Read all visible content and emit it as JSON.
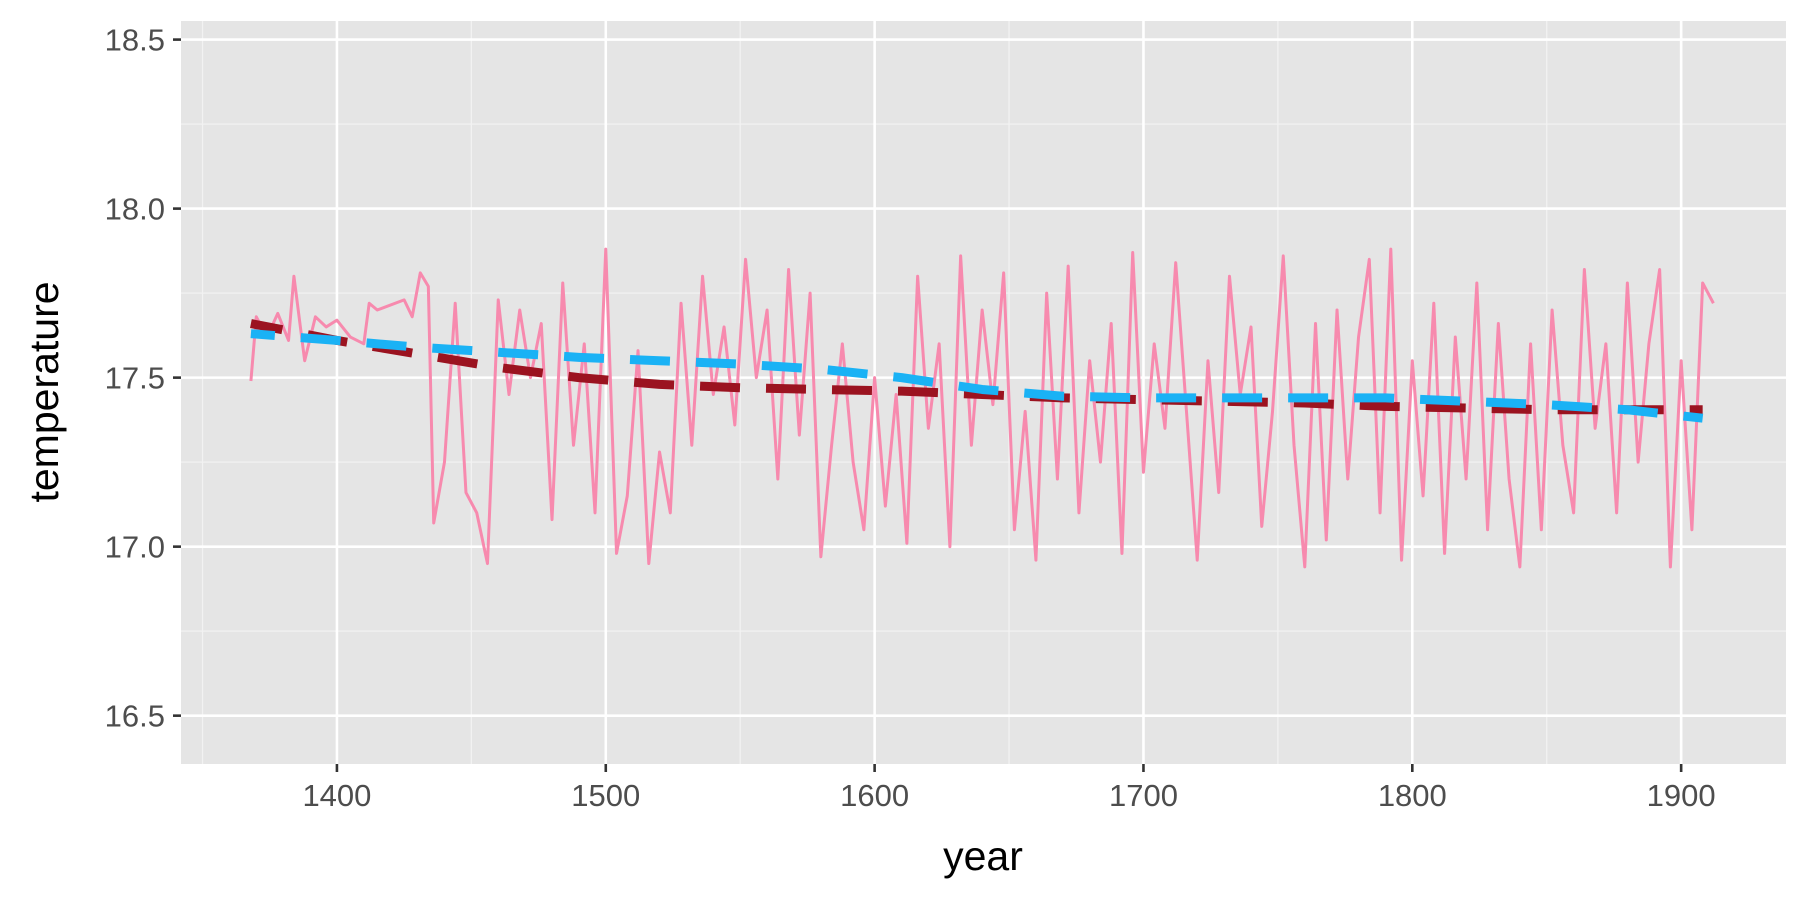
{
  "chart_data": {
    "type": "line",
    "x_label": "year",
    "y_label": "temperature",
    "xlim": [
      1342,
      1939
    ],
    "ylim": [
      16.357,
      18.555
    ],
    "xticks": [
      1400,
      1500,
      1600,
      1700,
      1800,
      1900
    ],
    "yticks": [
      {
        "value": 16.5,
        "label": "16.5"
      },
      {
        "value": 17,
        "label": "17.0"
      },
      {
        "value": 17.5,
        "label": "17.5"
      },
      {
        "value": 18,
        "label": "18.0"
      },
      {
        "value": 18.5,
        "label": "18.5"
      }
    ],
    "xminor": [
      1350,
      1450,
      1550,
      1650,
      1750,
      1850
    ],
    "yminor": [
      16.75,
      17.25,
      17.75,
      18.25
    ],
    "grid": true,
    "series": [
      {
        "color": "#f78aae",
        "dash": false,
        "x": [
          1368,
          1370,
          1374,
          1378,
          1382,
          1384,
          1388,
          1392,
          1396,
          1400,
          1405,
          1410,
          1412,
          1415,
          1425,
          1428,
          1431,
          1434,
          1436,
          1440,
          1444,
          1448,
          1452,
          1456,
          1460,
          1464,
          1468,
          1472,
          1476,
          1480,
          1484,
          1488,
          1492,
          1496,
          1500,
          1504,
          1508,
          1512,
          1516,
          1520,
          1524,
          1528,
          1532,
          1536,
          1540,
          1544,
          1548,
          1552,
          1556,
          1560,
          1564,
          1568,
          1572,
          1576,
          1580,
          1584,
          1588,
          1592,
          1596,
          1600,
          1604,
          1608,
          1612,
          1616,
          1620,
          1624,
          1628,
          1632,
          1636,
          1640,
          1644,
          1648,
          1652,
          1656,
          1660,
          1664,
          1668,
          1672,
          1676,
          1680,
          1684,
          1688,
          1692,
          1696,
          1700,
          1704,
          1708,
          1712,
          1716,
          1720,
          1724,
          1728,
          1732,
          1736,
          1740,
          1744,
          1748,
          1752,
          1756,
          1760,
          1764,
          1768,
          1772,
          1776,
          1780,
          1784,
          1788,
          1792,
          1796,
          1800,
          1804,
          1808,
          1812,
          1816,
          1820,
          1824,
          1828,
          1832,
          1836,
          1840,
          1844,
          1848,
          1852,
          1856,
          1860,
          1864,
          1868,
          1872,
          1876,
          1880,
          1884,
          1888,
          1892,
          1896,
          1900,
          1904,
          1908,
          1912
        ],
        "values": [
          17.49,
          17.68,
          17.62,
          17.69,
          17.61,
          17.8,
          17.55,
          17.68,
          17.65,
          17.67,
          17.62,
          17.6,
          17.72,
          17.7,
          17.73,
          17.68,
          17.81,
          17.77,
          17.07,
          17.25,
          17.72,
          17.16,
          17.1,
          16.95,
          17.73,
          17.45,
          17.7,
          17.5,
          17.66,
          17.08,
          17.78,
          17.3,
          17.6,
          17.1,
          17.88,
          16.98,
          17.15,
          17.58,
          16.95,
          17.28,
          17.1,
          17.72,
          17.3,
          17.8,
          17.45,
          17.65,
          17.36,
          17.85,
          17.5,
          17.7,
          17.2,
          17.82,
          17.33,
          17.75,
          16.97,
          17.3,
          17.6,
          17.25,
          17.05,
          17.5,
          17.12,
          17.45,
          17.01,
          17.8,
          17.35,
          17.6,
          17.0,
          17.86,
          17.3,
          17.7,
          17.42,
          17.81,
          17.05,
          17.4,
          16.96,
          17.75,
          17.2,
          17.83,
          17.1,
          17.55,
          17.25,
          17.66,
          16.98,
          17.87,
          17.22,
          17.6,
          17.35,
          17.84,
          17.4,
          16.96,
          17.55,
          17.16,
          17.8,
          17.45,
          17.65,
          17.06,
          17.4,
          17.86,
          17.3,
          16.94,
          17.66,
          17.02,
          17.7,
          17.2,
          17.62,
          17.85,
          17.1,
          17.88,
          16.96,
          17.55,
          17.15,
          17.72,
          16.98,
          17.62,
          17.2,
          17.78,
          17.05,
          17.66,
          17.2,
          16.94,
          17.6,
          17.05,
          17.7,
          17.3,
          17.1,
          17.82,
          17.35,
          17.6,
          17.1,
          17.78,
          17.25,
          17.6,
          17.82,
          16.94,
          17.55,
          17.05,
          17.78,
          17.72
        ]
      },
      {
        "color": "#9b1320",
        "dash": true,
        "x": [
          1368,
          1400,
          1430,
          1460,
          1490,
          1520,
          1550,
          1580,
          1610,
          1640,
          1670,
          1700,
          1730,
          1760,
          1790,
          1820,
          1850,
          1880,
          1908
        ],
        "values": [
          17.66,
          17.61,
          17.57,
          17.53,
          17.5,
          17.48,
          17.47,
          17.465,
          17.46,
          17.45,
          17.44,
          17.435,
          17.43,
          17.425,
          17.415,
          17.41,
          17.405,
          17.405,
          17.405
        ]
      },
      {
        "color": "#1ab2f5",
        "dash": true,
        "x": [
          1368,
          1400,
          1430,
          1460,
          1490,
          1520,
          1550,
          1580,
          1610,
          1640,
          1670,
          1700,
          1730,
          1760,
          1790,
          1820,
          1850,
          1880,
          1908
        ],
        "values": [
          17.63,
          17.61,
          17.59,
          17.575,
          17.56,
          17.55,
          17.54,
          17.525,
          17.5,
          17.465,
          17.445,
          17.44,
          17.44,
          17.44,
          17.44,
          17.43,
          17.42,
          17.405,
          17.38
        ]
      }
    ]
  }
}
